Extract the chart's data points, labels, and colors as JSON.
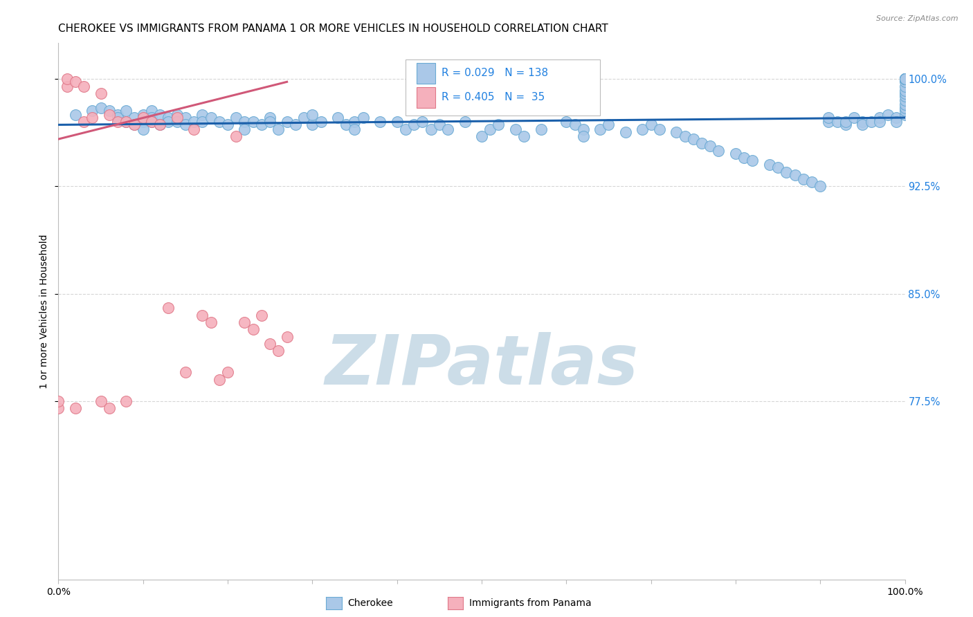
{
  "title": "CHEROKEE VS IMMIGRANTS FROM PANAMA 1 OR MORE VEHICLES IN HOUSEHOLD CORRELATION CHART",
  "source": "Source: ZipAtlas.com",
  "ylabel": "1 or more Vehicles in Household",
  "ytick_labels": [
    "77.5%",
    "85.0%",
    "92.5%",
    "100.0%"
  ],
  "ytick_values": [
    77.5,
    85.0,
    92.5,
    100.0
  ],
  "ymin": 65.0,
  "ymax": 102.5,
  "xmin": 0.0,
  "xmax": 100.0,
  "blue_face": "#aac8e8",
  "blue_edge": "#6aaad4",
  "pink_face": "#f5b0bc",
  "pink_edge": "#e07888",
  "trend_blue": "#1a5faa",
  "trend_pink": "#d05878",
  "watermark": "ZIPatlas",
  "watermark_color": "#ccdde8",
  "background_color": "#ffffff",
  "grid_color": "#cccccc",
  "ytick_color": "#2080e0",
  "legend_R_color": "#2080e0",
  "title_fontsize": 11,
  "source_fontsize": 8,
  "legend_fontsize": 11,
  "scatter_size": 130,
  "cherokee_x": [
    2,
    4,
    5,
    6,
    7,
    7,
    8,
    8,
    9,
    9,
    10,
    10,
    10,
    11,
    11,
    11,
    12,
    12,
    13,
    13,
    14,
    14,
    15,
    15,
    16,
    17,
    17,
    18,
    19,
    20,
    21,
    22,
    22,
    23,
    24,
    25,
    25,
    26,
    27,
    28,
    29,
    30,
    30,
    31,
    33,
    34,
    35,
    35,
    36,
    38,
    40,
    41,
    42,
    43,
    44,
    45,
    46,
    48,
    50,
    51,
    52,
    54,
    55,
    57,
    60,
    61,
    62,
    62,
    64,
    65,
    67,
    69,
    70,
    71,
    73,
    74,
    75,
    76,
    77,
    78,
    80,
    81,
    82,
    84,
    85,
    86,
    87,
    88,
    89,
    90,
    91,
    91,
    92,
    93,
    93,
    94,
    95,
    95,
    96,
    97,
    97,
    98,
    99,
    99,
    100,
    100,
    100,
    100,
    100,
    100,
    100,
    100,
    100,
    100,
    100,
    100,
    100,
    100,
    100,
    100,
    100,
    100,
    100,
    100,
    100,
    100,
    100,
    100,
    100,
    100,
    100,
    100,
    100,
    100,
    100,
    100,
    100,
    100
  ],
  "cherokee_y": [
    97.5,
    97.8,
    98.0,
    97.8,
    97.5,
    97.3,
    97.0,
    97.8,
    96.8,
    97.3,
    97.5,
    97.0,
    96.5,
    97.8,
    97.3,
    97.0,
    97.5,
    96.8,
    97.3,
    97.0,
    97.5,
    97.0,
    97.3,
    96.8,
    97.0,
    97.5,
    97.0,
    97.3,
    97.0,
    96.8,
    97.3,
    97.0,
    96.5,
    97.0,
    96.8,
    97.3,
    97.0,
    96.5,
    97.0,
    96.8,
    97.3,
    96.8,
    97.5,
    97.0,
    97.3,
    96.8,
    97.0,
    96.5,
    97.3,
    97.0,
    97.0,
    96.5,
    96.8,
    97.0,
    96.5,
    96.8,
    96.5,
    97.0,
    96.0,
    96.5,
    96.8,
    96.5,
    96.0,
    96.5,
    97.0,
    96.8,
    96.5,
    96.0,
    96.5,
    96.8,
    96.3,
    96.5,
    96.8,
    96.5,
    96.3,
    96.0,
    95.8,
    95.5,
    95.3,
    95.0,
    94.8,
    94.5,
    94.3,
    94.0,
    93.8,
    93.5,
    93.3,
    93.0,
    92.8,
    92.5,
    97.0,
    97.3,
    97.0,
    96.8,
    97.0,
    97.3,
    97.0,
    96.8,
    97.0,
    97.3,
    97.0,
    97.5,
    97.3,
    97.0,
    97.5,
    97.8,
    98.0,
    98.2,
    98.5,
    98.8,
    99.0,
    99.2,
    99.5,
    99.8,
    100.0,
    100.0,
    100.0,
    100.0,
    100.0,
    100.0,
    100.0,
    100.0,
    100.0,
    100.0,
    100.0,
    100.0,
    100.0,
    100.0,
    100.0,
    100.0,
    100.0,
    100.0,
    100.0,
    100.0,
    100.0,
    100.0,
    100.0,
    100.0
  ],
  "panama_x": [
    0,
    0,
    1,
    1,
    2,
    2,
    3,
    3,
    4,
    5,
    5,
    6,
    6,
    7,
    8,
    8,
    9,
    10,
    11,
    12,
    13,
    14,
    15,
    16,
    17,
    18,
    19,
    20,
    21,
    22,
    23,
    24,
    25,
    26,
    27
  ],
  "panama_y": [
    77.0,
    77.5,
    99.5,
    100.0,
    77.0,
    99.8,
    97.0,
    99.5,
    97.3,
    99.0,
    77.5,
    97.5,
    77.0,
    97.0,
    97.0,
    77.5,
    96.8,
    97.3,
    97.0,
    96.8,
    84.0,
    97.3,
    79.5,
    96.5,
    83.5,
    83.0,
    79.0,
    79.5,
    96.0,
    83.0,
    82.5,
    83.5,
    81.5,
    81.0,
    82.0
  ],
  "cherokee_trend_x": [
    0,
    100
  ],
  "cherokee_trend_y": [
    96.8,
    97.3
  ],
  "panama_trend_x": [
    0,
    27
  ],
  "panama_trend_y": [
    95.8,
    99.8
  ]
}
